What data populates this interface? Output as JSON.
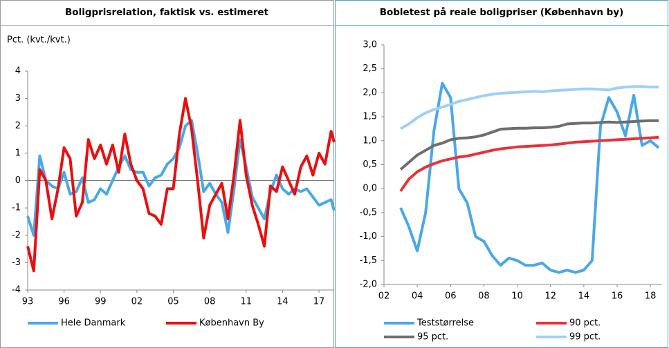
{
  "chart_data": [
    {
      "type": "line",
      "title": "Boligprisrelation, faktisk vs. estimeret",
      "ylabel": "Pct. (kvt./kvt.)",
      "x": [
        1993,
        1993.5,
        1994,
        1994.5,
        1995,
        1995.5,
        1996,
        1996.5,
        1997,
        1997.5,
        1998,
        1998.5,
        1999,
        1999.5,
        2000,
        2000.5,
        2001,
        2001.5,
        2002,
        2002.5,
        2003,
        2003.5,
        2004,
        2004.5,
        2005,
        2005.5,
        2006,
        2006.5,
        2007,
        2007.5,
        2008,
        2008.5,
        2009,
        2009.5,
        2010,
        2010.5,
        2011,
        2011.5,
        2012,
        2012.5,
        2013,
        2013.5,
        2014,
        2014.5,
        2015,
        2015.5,
        2016,
        2016.5,
        2017,
        2017.5,
        2018,
        2018.25
      ],
      "xlim": [
        1993,
        2018.25
      ],
      "xticks": [
        {
          "value": 1993,
          "label": "93"
        },
        {
          "value": 1996,
          "label": "96"
        },
        {
          "value": 1999,
          "label": "99"
        },
        {
          "value": 2002,
          "label": "02"
        },
        {
          "value": 2005,
          "label": "05"
        },
        {
          "value": 2008,
          "label": "08"
        },
        {
          "value": 2011,
          "label": "11"
        },
        {
          "value": 2014,
          "label": "14"
        },
        {
          "value": 2017,
          "label": "17"
        }
      ],
      "ylim": [
        -4,
        4
      ],
      "yticks": [
        -4,
        -3,
        -2,
        -1,
        0,
        1,
        2,
        3,
        4
      ],
      "zero_line": true,
      "series": [
        {
          "name": "Hele Danmark",
          "color": "#4aa8e8",
          "values": [
            -1.3,
            -2.0,
            0.9,
            0.0,
            -0.2,
            -0.3,
            0.3,
            -0.5,
            -0.4,
            0.1,
            -0.8,
            -0.7,
            -0.3,
            -0.5,
            0.0,
            0.5,
            0.9,
            0.4,
            0.3,
            0.3,
            -0.2,
            0.1,
            0.2,
            0.6,
            0.8,
            1.2,
            2.0,
            2.2,
            1.0,
            -0.4,
            -0.1,
            -0.5,
            -0.8,
            -1.9,
            -0.3,
            1.5,
            0.5,
            -0.6,
            -1.0,
            -1.4,
            -0.4,
            0.2,
            -0.3,
            -0.5,
            -0.3,
            -0.4,
            -0.3,
            -0.6,
            -0.9,
            -0.8,
            -0.7,
            -1.1
          ]
        },
        {
          "name": "København By",
          "color": "#e81010",
          "values": [
            -2.4,
            -3.3,
            0.4,
            0.0,
            -1.4,
            -0.3,
            1.2,
            0.8,
            -1.3,
            -0.8,
            1.5,
            0.8,
            1.3,
            0.6,
            1.3,
            0.3,
            1.7,
            0.6,
            0.0,
            -0.3,
            -1.2,
            -1.3,
            -1.6,
            -0.3,
            -0.3,
            1.7,
            3.0,
            1.9,
            0.0,
            -2.1,
            -0.9,
            -0.5,
            -0.1,
            -1.4,
            0.2,
            2.2,
            0.2,
            -0.9,
            -1.6,
            -2.4,
            -0.2,
            -0.4,
            0.5,
            0.0,
            -0.5,
            0.5,
            0.9,
            0.2,
            1.0,
            0.6,
            1.8,
            1.4
          ]
        }
      ]
    },
    {
      "type": "line",
      "title": "Bobletest på reale boligpriser (København by)",
      "x": [
        2003,
        2003.5,
        2004,
        2004.5,
        2005,
        2005.5,
        2006,
        2006.5,
        2007,
        2007.5,
        2008,
        2008.5,
        2009,
        2009.5,
        2010,
        2010.5,
        2011,
        2011.5,
        2012,
        2012.5,
        2013,
        2013.5,
        2014,
        2014.5,
        2015,
        2015.5,
        2016,
        2016.5,
        2017,
        2017.5,
        2018,
        2018.5
      ],
      "xlim": [
        2002,
        2018.7
      ],
      "xticks": [
        {
          "value": 2002,
          "label": "02"
        },
        {
          "value": 2004,
          "label": "04"
        },
        {
          "value": 2006,
          "label": "06"
        },
        {
          "value": 2008,
          "label": "08"
        },
        {
          "value": 2010,
          "label": "10"
        },
        {
          "value": 2012,
          "label": "12"
        },
        {
          "value": 2014,
          "label": "14"
        },
        {
          "value": 2016,
          "label": "16"
        },
        {
          "value": 2018,
          "label": "18"
        }
      ],
      "ylim": [
        -2,
        3
      ],
      "yticks": [
        {
          "value": -2,
          "label": "-2,0"
        },
        {
          "value": -1.5,
          "label": "-1,5"
        },
        {
          "value": -1,
          "label": "-1,0"
        },
        {
          "value": -0.5,
          "label": "-0,5"
        },
        {
          "value": 0,
          "label": "0,0"
        },
        {
          "value": 0.5,
          "label": "0,5"
        },
        {
          "value": 1,
          "label": "1,0"
        },
        {
          "value": 1.5,
          "label": "1,5"
        },
        {
          "value": 2,
          "label": "2,0"
        },
        {
          "value": 2.5,
          "label": "2,5"
        },
        {
          "value": 3,
          "label": "3,0"
        }
      ],
      "series": [
        {
          "name": "Teststørrelse",
          "color": "#4aa8e8",
          "values": [
            -0.4,
            -0.8,
            -1.3,
            -0.5,
            1.2,
            2.2,
            1.9,
            0.0,
            -0.3,
            -1.0,
            -1.1,
            -1.4,
            -1.6,
            -1.45,
            -1.5,
            -1.6,
            -1.6,
            -1.55,
            -1.7,
            -1.75,
            -1.7,
            -1.75,
            -1.7,
            -1.5,
            1.3,
            1.9,
            1.6,
            1.1,
            1.95,
            0.9,
            1.0,
            0.85
          ]
        },
        {
          "name": "90 pct.",
          "color": "#e8323a",
          "values": [
            -0.05,
            0.2,
            0.35,
            0.45,
            0.52,
            0.58,
            0.62,
            0.66,
            0.68,
            0.72,
            0.76,
            0.8,
            0.83,
            0.85,
            0.87,
            0.88,
            0.89,
            0.9,
            0.91,
            0.93,
            0.95,
            0.97,
            0.98,
            0.99,
            1.0,
            1.01,
            1.02,
            1.03,
            1.04,
            1.05,
            1.06,
            1.07
          ]
        },
        {
          "name": "95 pct.",
          "color": "#6e6e6e",
          "values": [
            0.4,
            0.55,
            0.7,
            0.8,
            0.9,
            0.95,
            1.02,
            1.05,
            1.06,
            1.08,
            1.12,
            1.18,
            1.24,
            1.25,
            1.26,
            1.26,
            1.27,
            1.27,
            1.28,
            1.3,
            1.35,
            1.36,
            1.37,
            1.37,
            1.38,
            1.39,
            1.38,
            1.39,
            1.4,
            1.41,
            1.42,
            1.42
          ]
        },
        {
          "name": "99 pct.",
          "color": "#9fd0f4",
          "values": [
            1.25,
            1.35,
            1.48,
            1.58,
            1.65,
            1.7,
            1.76,
            1.82,
            1.86,
            1.9,
            1.94,
            1.97,
            1.99,
            2.0,
            2.01,
            2.02,
            2.03,
            2.02,
            2.04,
            2.05,
            2.06,
            2.07,
            2.08,
            2.08,
            2.07,
            2.06,
            2.1,
            2.12,
            2.13,
            2.13,
            2.12,
            2.12
          ]
        }
      ]
    }
  ]
}
